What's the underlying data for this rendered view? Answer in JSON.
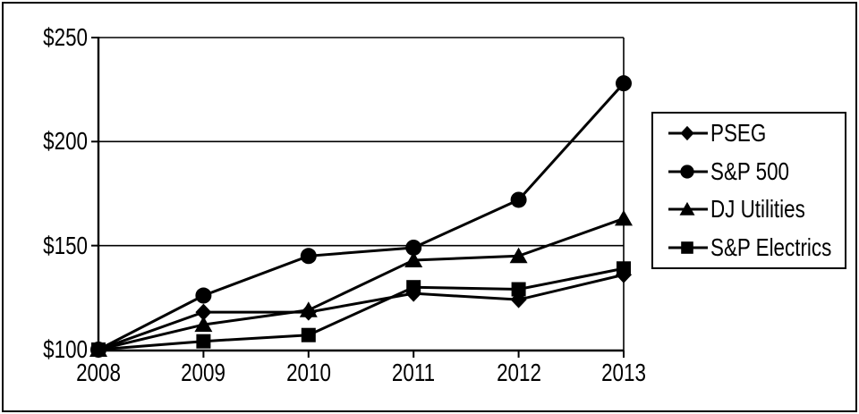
{
  "page": {
    "background": "#ffffff",
    "border_color": "#000000"
  },
  "chart_data": {
    "type": "line",
    "title": "",
    "xlabel": "",
    "ylabel": "",
    "categories": [
      "2008",
      "2009",
      "2010",
      "2011",
      "2012",
      "2013"
    ],
    "series": [
      {
        "name": "PSEG",
        "marker": "diamond",
        "color": "#000000",
        "values": [
          100,
          118,
          118,
          127,
          124,
          136
        ]
      },
      {
        "name": "S&P 500",
        "marker": "circle",
        "color": "#000000",
        "values": [
          100,
          126,
          145,
          149,
          172,
          228
        ]
      },
      {
        "name": "DJ Utilities",
        "marker": "triangle",
        "color": "#000000",
        "values": [
          100,
          112,
          119,
          143,
          145,
          163
        ]
      },
      {
        "name": "S&P Electrics",
        "marker": "square",
        "color": "#000000",
        "values": [
          100,
          104,
          107,
          130,
          129,
          139
        ]
      }
    ],
    "ylim": [
      100,
      250
    ],
    "y_ticks": [
      {
        "value": 100,
        "label": "$100"
      },
      {
        "value": 150,
        "label": "$150"
      },
      {
        "value": 200,
        "label": "$200"
      },
      {
        "value": 250,
        "label": "$250"
      }
    ],
    "grid": true,
    "legend_position": "right"
  }
}
